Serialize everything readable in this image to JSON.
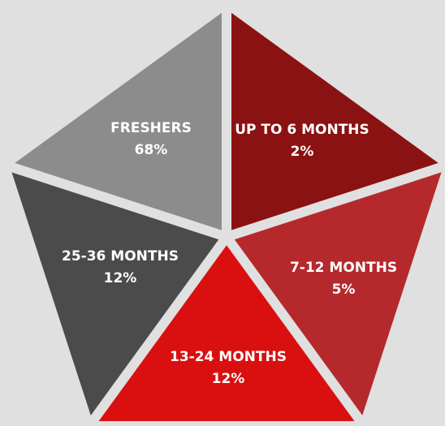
{
  "segments": [
    {
      "label": "FRESHERS",
      "value": "68%",
      "color": "#8c8c8c"
    },
    {
      "label": "UP TO 6 MONTHS",
      "value": "2%",
      "color": "#8b1212"
    },
    {
      "label": "7-12 MONTHS",
      "value": "5%",
      "color": "#b5292d"
    },
    {
      "label": "13-24 MONTHS",
      "value": "12%",
      "color": "#da1010"
    },
    {
      "label": "25-36 MONTHS",
      "value": "12%",
      "color": "#4b4b4b"
    }
  ]
}
